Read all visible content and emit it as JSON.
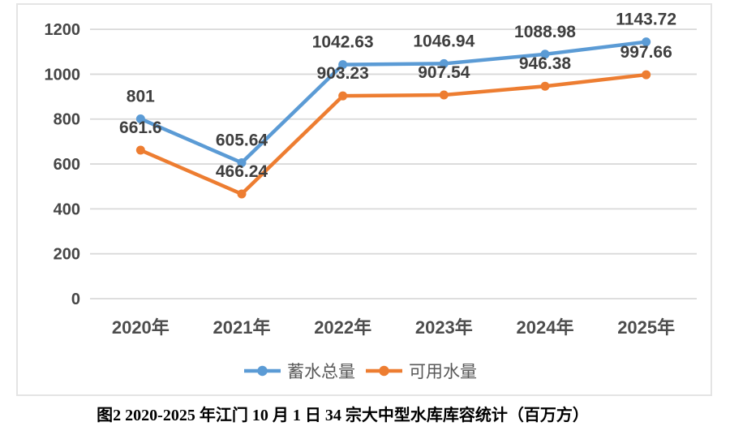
{
  "chart": {
    "frame_border_color": "#e4e4e4",
    "grid_color": "#d9d9d9",
    "tick_text_color": "#464646",
    "data_label_color": "#3f3f3f",
    "legend_text_color": "#595959",
    "background": "#ffffff"
  },
  "chart_data": {
    "type": "line",
    "title": "",
    "xlabel": "",
    "ylabel": "",
    "categories": [
      "2020年",
      "2021年",
      "2022年",
      "2023年",
      "2024年",
      "2025年"
    ],
    "series": [
      {
        "name": "蓄水总量",
        "color": "#5B9BD5",
        "marker": "circle",
        "values": [
          801,
          605.64,
          1042.63,
          1046.94,
          1088.98,
          1143.72
        ],
        "data_labels": [
          "801",
          "605.64",
          "1042.63",
          "1046.94",
          "1088.98",
          "1143.72"
        ]
      },
      {
        "name": "可用水量",
        "color": "#ED7D31",
        "marker": "circle",
        "values": [
          661.6,
          466.24,
          903.23,
          907.54,
          946.38,
          997.66
        ],
        "data_labels": [
          "661.6",
          "466.24",
          "903.23",
          "907.54",
          "946.38",
          "997.66"
        ]
      }
    ],
    "ylim": [
      0,
      1200
    ],
    "y_ticks": [
      0,
      200,
      400,
      600,
      800,
      1000,
      1200
    ],
    "y_tick_labels": [
      "0",
      "200",
      "400",
      "600",
      "800",
      "1000",
      "1200"
    ],
    "grid": true,
    "legend_position": "bottom"
  },
  "caption": {
    "text": "图2 2020-2025 年江门 10 月 1 日 34 宗大中型水库库容统计（百万方）"
  }
}
